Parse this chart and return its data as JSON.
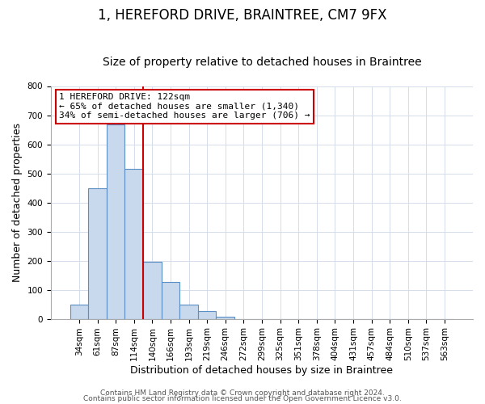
{
  "title": "1, HEREFORD DRIVE, BRAINTREE, CM7 9FX",
  "subtitle": "Size of property relative to detached houses in Braintree",
  "xlabel": "Distribution of detached houses by size in Braintree",
  "ylabel": "Number of detached properties",
  "bin_labels": [
    "34sqm",
    "61sqm",
    "87sqm",
    "114sqm",
    "140sqm",
    "166sqm",
    "193sqm",
    "219sqm",
    "246sqm",
    "272sqm",
    "299sqm",
    "325sqm",
    "351sqm",
    "378sqm",
    "404sqm",
    "431sqm",
    "457sqm",
    "484sqm",
    "510sqm",
    "537sqm",
    "563sqm"
  ],
  "bar_heights": [
    50,
    448,
    668,
    515,
    197,
    127,
    48,
    26,
    8,
    0,
    0,
    0,
    0,
    0,
    0,
    0,
    0,
    0,
    0,
    0,
    0
  ],
  "bar_color": "#c9d9ed",
  "bar_edge_color": "#5b8ec4",
  "bar_width": 1.0,
  "vline_x": 3.5,
  "vline_color": "#cc0000",
  "ylim": [
    0,
    800
  ],
  "yticks": [
    0,
    100,
    200,
    300,
    400,
    500,
    600,
    700,
    800
  ],
  "annotation_title": "1 HEREFORD DRIVE: 122sqm",
  "annotation_line1": "← 65% of detached houses are smaller (1,340)",
  "annotation_line2": "34% of semi-detached houses are larger (706) →",
  "footer1": "Contains HM Land Registry data © Crown copyright and database right 2024.",
  "footer2": "Contains public sector information licensed under the Open Government Licence v3.0.",
  "title_fontsize": 12,
  "subtitle_fontsize": 10,
  "xlabel_fontsize": 9,
  "ylabel_fontsize": 9,
  "tick_fontsize": 7.5,
  "footer_fontsize": 6.5
}
